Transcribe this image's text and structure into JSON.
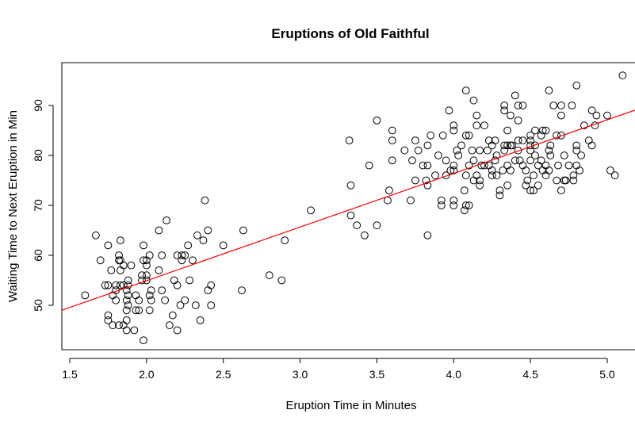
{
  "chart_data": {
    "type": "scatter",
    "title": "Eruptions of Old Faithful",
    "xlabel": "Eruption Time in Minutes",
    "ylabel": "Waiting Time to Next Eruption in Min",
    "xlim": [
      1.5,
      5.2
    ],
    "ylim": [
      41.5,
      98
    ],
    "x_ticks": [
      1.5,
      2.0,
      2.5,
      3.0,
      3.5,
      4.0,
      4.5,
      5.0
    ],
    "x_tick_labels": [
      "1.5",
      "2.0",
      "2.5",
      "3.0",
      "3.5",
      "4.0",
      "4.5",
      "5.0"
    ],
    "y_ticks": [
      50,
      60,
      70,
      80,
      90
    ],
    "y_tick_labels": [
      "50",
      "60",
      "70",
      "80",
      "90"
    ],
    "grid": false,
    "series": [
      {
        "points": [
          [
            1.6,
            52
          ],
          [
            1.67,
            64
          ],
          [
            1.7,
            59
          ],
          [
            1.73,
            54
          ],
          [
            1.75,
            54
          ],
          [
            1.75,
            62
          ],
          [
            1.75,
            48
          ],
          [
            1.75,
            47
          ],
          [
            1.77,
            57
          ],
          [
            1.78,
            52
          ],
          [
            1.78,
            46
          ],
          [
            1.8,
            51
          ],
          [
            1.8,
            53
          ],
          [
            1.8,
            54
          ],
          [
            1.82,
            59
          ],
          [
            1.82,
            60
          ],
          [
            1.82,
            46
          ],
          [
            1.83,
            54
          ],
          [
            1.83,
            63
          ],
          [
            1.83,
            59
          ],
          [
            1.83,
            57
          ],
          [
            1.85,
            46
          ],
          [
            1.85,
            54
          ],
          [
            1.85,
            58
          ],
          [
            1.87,
            45
          ],
          [
            1.87,
            49
          ],
          [
            1.87,
            51
          ],
          [
            1.87,
            53
          ],
          [
            1.87,
            47
          ],
          [
            1.88,
            50
          ],
          [
            1.88,
            52
          ],
          [
            1.88,
            55
          ],
          [
            1.88,
            54
          ],
          [
            1.9,
            58
          ],
          [
            1.92,
            45
          ],
          [
            1.93,
            49
          ],
          [
            1.93,
            52
          ],
          [
            1.95,
            49
          ],
          [
            1.95,
            51
          ],
          [
            1.97,
            56
          ],
          [
            1.97,
            55
          ],
          [
            1.98,
            43
          ],
          [
            1.98,
            59
          ],
          [
            1.98,
            62
          ],
          [
            2.0,
            59
          ],
          [
            2.0,
            56
          ],
          [
            2.0,
            55
          ],
          [
            2.0,
            58
          ],
          [
            2.02,
            60
          ],
          [
            2.02,
            52
          ],
          [
            2.02,
            49
          ],
          [
            2.03,
            53
          ],
          [
            2.03,
            51
          ],
          [
            2.08,
            65
          ],
          [
            2.08,
            57
          ],
          [
            2.1,
            53
          ],
          [
            2.1,
            60
          ],
          [
            2.12,
            51
          ],
          [
            2.13,
            67
          ],
          [
            2.15,
            46
          ],
          [
            2.17,
            48
          ],
          [
            2.18,
            55
          ],
          [
            2.2,
            54
          ],
          [
            2.2,
            45
          ],
          [
            2.2,
            60
          ],
          [
            2.22,
            50
          ],
          [
            2.23,
            60
          ],
          [
            2.23,
            59
          ],
          [
            2.25,
            60
          ],
          [
            2.25,
            51
          ],
          [
            2.27,
            62
          ],
          [
            2.28,
            55
          ],
          [
            2.3,
            59
          ],
          [
            2.32,
            50
          ],
          [
            2.33,
            64
          ],
          [
            2.35,
            47
          ],
          [
            2.37,
            63
          ],
          [
            2.38,
            71
          ],
          [
            2.4,
            53
          ],
          [
            2.4,
            65
          ],
          [
            2.42,
            54
          ],
          [
            2.42,
            50
          ],
          [
            2.5,
            62
          ],
          [
            2.62,
            53
          ],
          [
            2.63,
            65
          ],
          [
            2.8,
            56
          ],
          [
            2.88,
            55
          ],
          [
            2.9,
            63
          ],
          [
            3.07,
            69
          ],
          [
            3.32,
            83
          ],
          [
            3.33,
            68
          ],
          [
            3.33,
            74
          ],
          [
            3.37,
            66
          ],
          [
            3.42,
            64
          ],
          [
            3.45,
            78
          ],
          [
            3.5,
            66
          ],
          [
            3.5,
            87
          ],
          [
            3.57,
            71
          ],
          [
            3.58,
            73
          ],
          [
            3.6,
            83
          ],
          [
            3.6,
            85
          ],
          [
            3.6,
            79
          ],
          [
            3.68,
            81
          ],
          [
            3.72,
            71
          ],
          [
            3.73,
            79
          ],
          [
            3.75,
            75
          ],
          [
            3.75,
            83
          ],
          [
            3.77,
            81
          ],
          [
            3.8,
            78
          ],
          [
            3.82,
            75
          ],
          [
            3.83,
            64
          ],
          [
            3.83,
            74
          ],
          [
            3.83,
            78
          ],
          [
            3.83,
            82
          ],
          [
            3.85,
            84
          ],
          [
            3.88,
            76
          ],
          [
            3.9,
            80
          ],
          [
            3.92,
            71
          ],
          [
            3.92,
            70
          ],
          [
            3.93,
            84
          ],
          [
            3.95,
            76
          ],
          [
            3.95,
            79
          ],
          [
            3.97,
            89
          ],
          [
            3.98,
            77
          ],
          [
            4.0,
            85
          ],
          [
            4.0,
            86
          ],
          [
            4.0,
            71
          ],
          [
            4.0,
            70
          ],
          [
            4.0,
            77
          ],
          [
            4.0,
            78
          ],
          [
            4.02,
            81
          ],
          [
            4.03,
            80
          ],
          [
            4.05,
            82
          ],
          [
            4.07,
            73
          ],
          [
            4.07,
            69
          ],
          [
            4.08,
            70
          ],
          [
            4.08,
            93
          ],
          [
            4.08,
            84
          ],
          [
            4.08,
            76
          ],
          [
            4.1,
            70
          ],
          [
            4.1,
            84
          ],
          [
            4.1,
            78
          ],
          [
            4.12,
            81
          ],
          [
            4.13,
            91
          ],
          [
            4.13,
            75
          ],
          [
            4.13,
            79
          ],
          [
            4.15,
            88
          ],
          [
            4.15,
            86
          ],
          [
            4.15,
            76
          ],
          [
            4.17,
            81
          ],
          [
            4.17,
            75
          ],
          [
            4.17,
            74
          ],
          [
            4.18,
            78
          ],
          [
            4.2,
            86
          ],
          [
            4.2,
            78
          ],
          [
            4.22,
            81
          ],
          [
            4.23,
            78
          ],
          [
            4.23,
            83
          ],
          [
            4.25,
            77
          ],
          [
            4.25,
            76
          ],
          [
            4.25,
            82
          ],
          [
            4.27,
            83
          ],
          [
            4.27,
            79
          ],
          [
            4.28,
            80
          ],
          [
            4.28,
            76
          ],
          [
            4.3,
            73
          ],
          [
            4.3,
            72
          ],
          [
            4.32,
            77
          ],
          [
            4.33,
            81
          ],
          [
            4.33,
            82
          ],
          [
            4.33,
            90
          ],
          [
            4.33,
            89
          ],
          [
            4.35,
            74
          ],
          [
            4.35,
            82
          ],
          [
            4.35,
            78
          ],
          [
            4.35,
            85
          ],
          [
            4.37,
            88
          ],
          [
            4.37,
            77
          ],
          [
            4.37,
            82
          ],
          [
            4.38,
            82
          ],
          [
            4.4,
            92
          ],
          [
            4.4,
            79
          ],
          [
            4.42,
            90
          ],
          [
            4.42,
            87
          ],
          [
            4.42,
            83
          ],
          [
            4.42,
            81
          ],
          [
            4.43,
            79
          ],
          [
            4.45,
            78
          ],
          [
            4.45,
            90
          ],
          [
            4.45,
            83
          ],
          [
            4.47,
            77
          ],
          [
            4.47,
            74
          ],
          [
            4.48,
            75
          ],
          [
            4.5,
            73
          ],
          [
            4.5,
            81
          ],
          [
            4.5,
            79
          ],
          [
            4.5,
            83
          ],
          [
            4.5,
            84
          ],
          [
            4.5,
            82
          ],
          [
            4.52,
            76
          ],
          [
            4.52,
            73
          ],
          [
            4.53,
            80
          ],
          [
            4.53,
            85
          ],
          [
            4.53,
            82
          ],
          [
            4.55,
            74
          ],
          [
            4.55,
            78
          ],
          [
            4.57,
            79
          ],
          [
            4.57,
            84
          ],
          [
            4.58,
            85
          ],
          [
            4.58,
            77
          ],
          [
            4.6,
            76
          ],
          [
            4.6,
            78
          ],
          [
            4.6,
            85
          ],
          [
            4.62,
            77
          ],
          [
            4.62,
            93
          ],
          [
            4.62,
            81
          ],
          [
            4.63,
            82
          ],
          [
            4.63,
            80
          ],
          [
            4.65,
            90
          ],
          [
            4.67,
            84
          ],
          [
            4.67,
            75
          ],
          [
            4.68,
            78
          ],
          [
            4.7,
            73
          ],
          [
            4.7,
            90
          ],
          [
            4.7,
            88
          ],
          [
            4.7,
            84
          ],
          [
            4.72,
            80
          ],
          [
            4.72,
            75
          ],
          [
            4.73,
            75
          ],
          [
            4.75,
            78
          ],
          [
            4.77,
            90
          ],
          [
            4.78,
            76
          ],
          [
            4.78,
            75
          ],
          [
            4.8,
            94
          ],
          [
            4.8,
            78
          ],
          [
            4.8,
            82
          ],
          [
            4.8,
            81
          ],
          [
            4.82,
            77
          ],
          [
            4.83,
            80
          ],
          [
            4.85,
            86
          ],
          [
            4.88,
            83
          ],
          [
            4.9,
            82
          ],
          [
            4.9,
            89
          ],
          [
            4.92,
            86
          ],
          [
            4.93,
            88
          ],
          [
            5.0,
            88
          ],
          [
            5.02,
            77
          ],
          [
            5.05,
            76
          ],
          [
            5.1,
            96
          ]
        ]
      }
    ],
    "fit_line": {
      "intercept": 33.47,
      "slope": 10.73,
      "color": "#ff0000"
    },
    "point_color": "#000000"
  }
}
